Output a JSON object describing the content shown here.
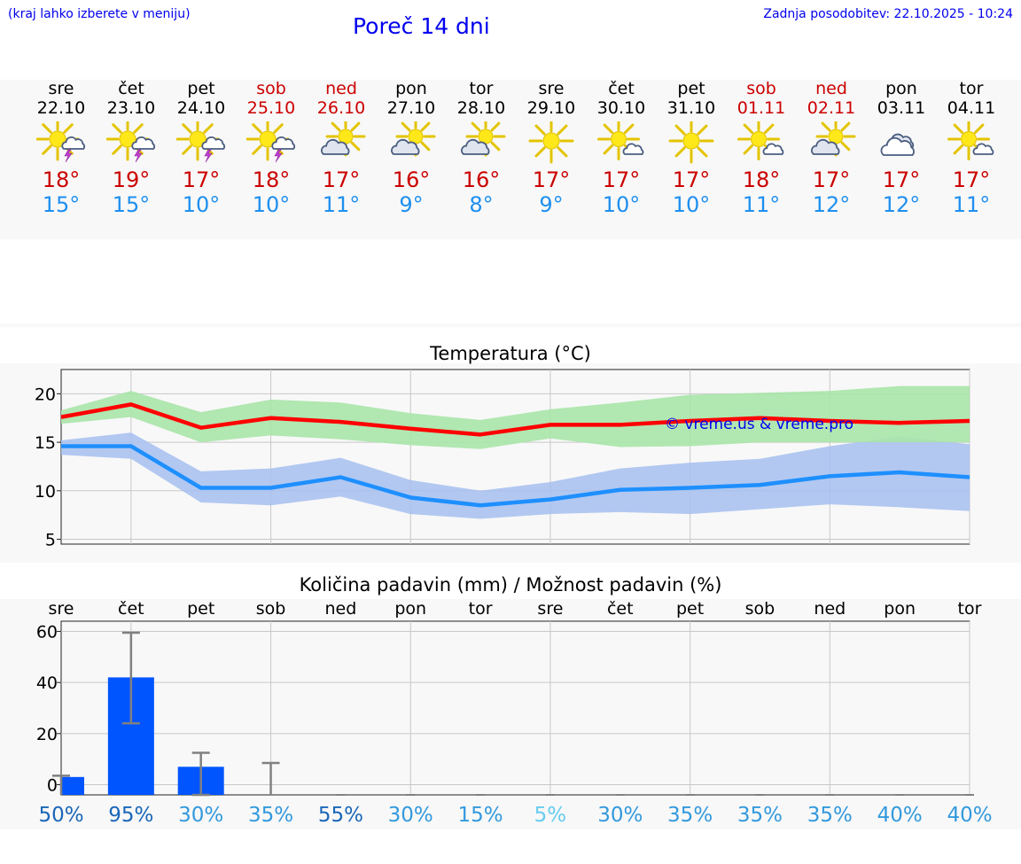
{
  "header": {
    "left_note": "(kraj lahko izberete v meniju)",
    "title": "Poreč 14 dni",
    "updated": "Zadnja posodobitev: 22.10.2025 - 10:24"
  },
  "colors": {
    "link_blue": "#0000ee",
    "weekend_red": "#cc0000",
    "max_red": "#cc0000",
    "min_blue": "#1e8fef",
    "max_band": "#a8e4a8",
    "min_band": "#a6bff0",
    "max_line": "#ff0000",
    "min_line": "#1e8fff",
    "bar": "#0055ff",
    "watermark": "#0000ee"
  },
  "days": [
    {
      "name": "sre",
      "date": "22.10",
      "weekend": false,
      "icon": "sun-cloud-thunder-icon",
      "tmax": "18°",
      "tmin": "15°"
    },
    {
      "name": "čet",
      "date": "23.10",
      "weekend": false,
      "icon": "sun-cloud-thunder-icon",
      "tmax": "19°",
      "tmin": "15°"
    },
    {
      "name": "pet",
      "date": "24.10",
      "weekend": false,
      "icon": "sun-cloud-thunder-icon",
      "tmax": "17°",
      "tmin": "10°"
    },
    {
      "name": "sob",
      "date": "25.10",
      "weekend": true,
      "icon": "sun-cloud-thunder-icon",
      "tmax": "18°",
      "tmin": "10°"
    },
    {
      "name": "ned",
      "date": "26.10",
      "weekend": true,
      "icon": "partly-cloudy-icon",
      "tmax": "17°",
      "tmin": "11°"
    },
    {
      "name": "pon",
      "date": "27.10",
      "weekend": false,
      "icon": "partly-cloudy-icon",
      "tmax": "16°",
      "tmin": "9°"
    },
    {
      "name": "tor",
      "date": "28.10",
      "weekend": false,
      "icon": "partly-cloudy-icon",
      "tmax": "16°",
      "tmin": "8°"
    },
    {
      "name": "sre",
      "date": "29.10",
      "weekend": false,
      "icon": "sun-icon",
      "tmax": "17°",
      "tmin": "9°"
    },
    {
      "name": "čet",
      "date": "30.10",
      "weekend": false,
      "icon": "sun-small-cloud-icon",
      "tmax": "17°",
      "tmin": "10°"
    },
    {
      "name": "pet",
      "date": "31.10",
      "weekend": false,
      "icon": "sun-icon",
      "tmax": "17°",
      "tmin": "10°"
    },
    {
      "name": "sob",
      "date": "01.11",
      "weekend": true,
      "icon": "sun-small-cloud-icon",
      "tmax": "18°",
      "tmin": "11°"
    },
    {
      "name": "ned",
      "date": "02.11",
      "weekend": true,
      "icon": "partly-cloudy-icon",
      "tmax": "17°",
      "tmin": "12°"
    },
    {
      "name": "pon",
      "date": "03.11",
      "weekend": false,
      "icon": "cloudy-icon",
      "tmax": "17°",
      "tmin": "12°"
    },
    {
      "name": "tor",
      "date": "04.11",
      "weekend": false,
      "icon": "sun-small-cloud-icon",
      "tmax": "17°",
      "tmin": "11°"
    }
  ],
  "chart_data": [
    {
      "type": "line",
      "title": "Temperatura (°C)",
      "xlabel": "",
      "ylabel": "°C",
      "ylim": [
        4.5,
        22.5
      ],
      "yticks": [
        5,
        10,
        15,
        20
      ],
      "x": [
        0,
        1,
        2,
        3,
        4,
        5,
        6,
        7,
        8,
        9,
        10,
        11,
        12,
        13
      ],
      "grid": true,
      "watermark": "© vreme.us & vreme.pro",
      "series": [
        {
          "name": "max",
          "values": [
            17.6,
            18.9,
            16.5,
            17.5,
            17.1,
            16.4,
            15.8,
            16.8,
            16.8,
            17.2,
            17.5,
            17.2,
            17.0,
            17.2
          ],
          "band_low": [
            16.9,
            17.6,
            15.0,
            15.7,
            15.3,
            14.7,
            14.3,
            15.4,
            14.5,
            14.6,
            15.0,
            15.0,
            15.0,
            15.0
          ],
          "band_high": [
            18.3,
            20.3,
            18.1,
            19.4,
            19.1,
            18.0,
            17.3,
            18.4,
            19.1,
            19.9,
            20.1,
            20.3,
            20.8,
            20.8
          ]
        },
        {
          "name": "min",
          "values": [
            14.6,
            14.6,
            10.3,
            10.3,
            11.4,
            9.3,
            8.5,
            9.1,
            10.1,
            10.3,
            10.6,
            11.5,
            11.9,
            11.4
          ],
          "band_low": [
            13.7,
            13.3,
            8.8,
            8.5,
            9.4,
            7.6,
            7.1,
            7.6,
            7.8,
            7.6,
            8.1,
            8.6,
            8.3,
            7.9
          ],
          "band_high": [
            15.2,
            16.0,
            12.0,
            12.3,
            13.4,
            11.1,
            10.0,
            10.9,
            12.3,
            12.9,
            13.3,
            14.6,
            15.6,
            14.8
          ]
        }
      ]
    },
    {
      "type": "bar",
      "title": "Količina padavin (mm) / Možnost padavin (%)",
      "xlabel": "",
      "ylabel": "mm",
      "ylim": [
        -4,
        64
      ],
      "yticks": [
        0,
        20,
        40,
        60
      ],
      "grid": true,
      "categories": [
        "sre",
        "čet",
        "pet",
        "sob",
        "ned",
        "pon",
        "tor",
        "sre",
        "čet",
        "pet",
        "sob",
        "ned",
        "pon",
        "tor"
      ],
      "values": [
        3,
        42,
        7,
        0,
        0,
        0,
        0,
        0,
        0,
        0,
        0,
        0,
        0,
        0
      ],
      "error_high": [
        3.5,
        59.5,
        12.5,
        8.5,
        0,
        0,
        0,
        0,
        0,
        0,
        0,
        0,
        0,
        0
      ],
      "error_low": [
        0,
        24,
        0,
        0,
        0,
        0,
        0,
        0,
        0,
        0,
        0,
        0,
        0,
        0
      ],
      "chance": [
        "50%",
        "95%",
        "30%",
        "35%",
        "55%",
        "30%",
        "15%",
        "5%",
        "30%",
        "35%",
        "35%",
        "35%",
        "40%",
        "40%"
      ],
      "chance_colors": [
        "#1a66b8",
        "#1a66b8",
        "#3399dd",
        "#3399dd",
        "#1a66b8",
        "#3399dd",
        "#3399dd",
        "#66ccee",
        "#3399dd",
        "#3399dd",
        "#3399dd",
        "#3399dd",
        "#3399dd",
        "#3399dd"
      ]
    }
  ]
}
